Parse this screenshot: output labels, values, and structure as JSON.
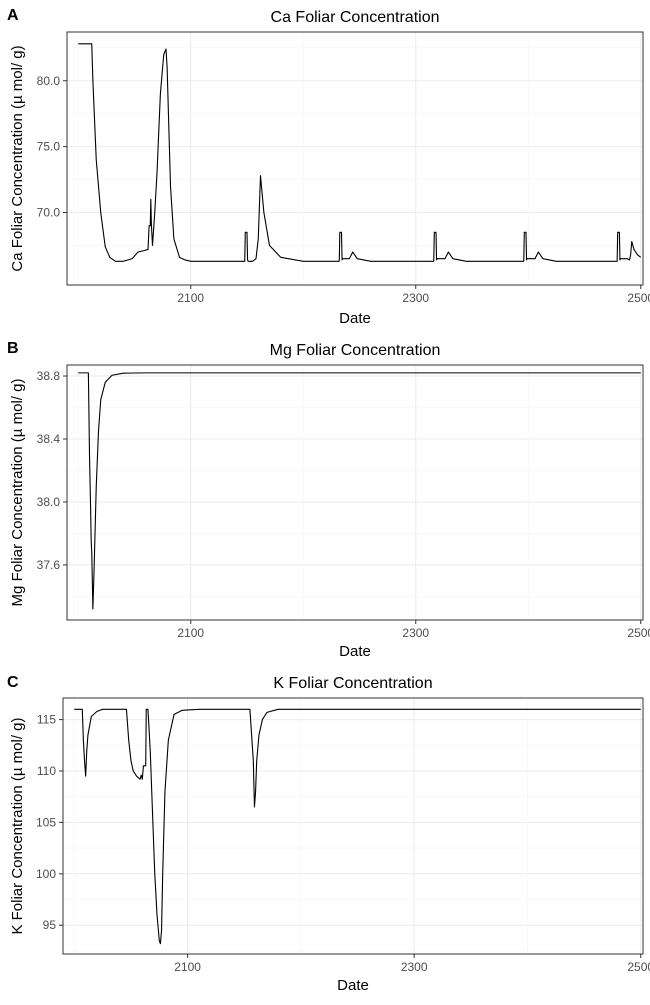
{
  "chart_data": [
    {
      "panel": "A",
      "type": "line",
      "title": "Ca Foliar Concentration",
      "xlabel": "Date",
      "ylabel": "Ca Foliar Concentration (µ mol/ g)",
      "xlim": [
        1990,
        2502
      ],
      "ylim": [
        64.5,
        83.7
      ],
      "x_ticks": [
        2100,
        2300,
        2500
      ],
      "x_tick_labels": [
        "2100",
        "2300",
        "2500"
      ],
      "y_ticks": [
        70,
        75,
        80
      ],
      "y_tick_labels": [
        "70.0",
        "75.0",
        "80.0"
      ],
      "grid": true,
      "series": [
        {
          "x": [
            2000,
            2012,
            2013,
            2016,
            2020,
            2024,
            2028,
            2033,
            2040,
            2048,
            2053,
            2058,
            2062,
            2063,
            2064,
            2064.5,
            2065,
            2066,
            2068,
            2070,
            2073,
            2076,
            2078,
            2079,
            2080,
            2082,
            2085,
            2090,
            2095,
            2100,
            2110,
            2120,
            2146,
            2148,
            2148.5,
            2150,
            2150.5,
            2151,
            2155,
            2158,
            2160,
            2162,
            2165,
            2170,
            2180,
            2200,
            2231,
            2232,
            2232.5,
            2234,
            2234.5,
            2235,
            2241,
            2244,
            2248,
            2260,
            2300,
            2315,
            2316,
            2316.5,
            2318,
            2318.5,
            2319,
            2326,
            2329,
            2333,
            2345,
            2380,
            2395,
            2396,
            2396.5,
            2398,
            2398.5,
            2399,
            2406,
            2409,
            2413,
            2425,
            2460,
            2478,
            2479,
            2479.5,
            2481,
            2481.5,
            2482,
            2488,
            2490,
            2491,
            2492,
            2494,
            2497,
            2500
          ],
          "y": [
            82.8,
            82.8,
            80,
            74,
            70,
            67.4,
            66.6,
            66.3,
            66.3,
            66.5,
            67,
            67.1,
            67.2,
            69,
            69,
            71,
            69.1,
            67.5,
            70,
            73,
            79,
            82,
            82.4,
            81,
            78,
            72,
            68,
            66.6,
            66.4,
            66.3,
            66.3,
            66.3,
            66.3,
            66.3,
            68.5,
            68.5,
            66.4,
            66.3,
            66.3,
            66.5,
            68,
            72.8,
            70,
            67.5,
            66.6,
            66.3,
            66.3,
            66.3,
            68.5,
            68.5,
            66.4,
            66.5,
            66.5,
            67,
            66.5,
            66.3,
            66.3,
            66.3,
            66.3,
            68.5,
            68.5,
            66.4,
            66.5,
            66.5,
            67,
            66.5,
            66.3,
            66.3,
            66.3,
            66.3,
            68.5,
            68.5,
            66.4,
            66.5,
            66.5,
            67,
            66.5,
            66.3,
            66.3,
            66.3,
            66.3,
            68.5,
            68.5,
            66.4,
            66.5,
            66.5,
            66.4,
            66.8,
            67.8,
            67.2,
            66.8,
            66.6
          ]
        }
      ]
    },
    {
      "panel": "B",
      "type": "line",
      "title": "Mg Foliar Concentration",
      "xlabel": "Date",
      "ylabel": "Mg Foliar Concentration (µ mol/ g)",
      "xlim": [
        1990,
        2502
      ],
      "ylim": [
        37.25,
        38.87
      ],
      "x_ticks": [
        2100,
        2300,
        2500
      ],
      "x_tick_labels": [
        "2100",
        "2300",
        "2500"
      ],
      "y_ticks": [
        37.6,
        38.0,
        38.4,
        38.8
      ],
      "y_tick_labels": [
        "37.6",
        "38.0",
        "38.4",
        "38.8"
      ],
      "grid": true,
      "series": [
        {
          "x": [
            2000,
            2009,
            2010,
            2011,
            2011.5,
            2012,
            2013,
            2014,
            2016,
            2018,
            2020,
            2024,
            2030,
            2040,
            2060,
            2100,
            2500
          ],
          "y": [
            38.82,
            38.82,
            38.3,
            37.95,
            37.75,
            37.68,
            37.32,
            37.55,
            38.1,
            38.45,
            38.65,
            38.76,
            38.805,
            38.818,
            38.82,
            38.82,
            38.82
          ]
        }
      ]
    },
    {
      "panel": "C",
      "type": "line",
      "title": "K Foliar Concentration",
      "xlabel": "Date",
      "ylabel": "K Foliar Concentration (µ mol/ g)",
      "xlim": [
        1990,
        2502
      ],
      "ylim": [
        92.2,
        117.1
      ],
      "x_ticks": [
        2100,
        2300,
        2500
      ],
      "x_tick_labels": [
        "2100",
        "2300",
        "2500"
      ],
      "y_ticks": [
        95,
        100,
        105,
        110,
        115
      ],
      "y_tick_labels": [
        "95",
        "100",
        "105",
        "110",
        "115"
      ],
      "grid": true,
      "series": [
        {
          "x": [
            2000,
            2007,
            2008,
            2009,
            2010,
            2011,
            2012,
            2015,
            2020,
            2025,
            2040,
            2046,
            2048,
            2050,
            2052,
            2055,
            2058,
            2059,
            2060,
            2061,
            2063,
            2063.5,
            2065,
            2067,
            2069,
            2071,
            2073,
            2075,
            2076,
            2077,
            2078,
            2080,
            2083,
            2088,
            2095,
            2110,
            2155,
            2158,
            2159,
            2160,
            2161,
            2163,
            2166,
            2170,
            2180,
            2500
          ],
          "y": [
            116,
            116,
            113,
            111,
            109.5,
            112,
            113.5,
            115.3,
            115.8,
            116,
            116,
            116,
            113,
            111,
            110,
            109.5,
            109.2,
            109.6,
            109.2,
            110.5,
            110.5,
            116,
            116,
            112,
            106,
            100,
            96,
            93.5,
            93.2,
            94.5,
            100,
            108,
            113,
            115.5,
            115.9,
            116,
            116,
            111,
            106.5,
            108,
            111,
            113.5,
            115,
            115.7,
            116,
            116
          ]
        }
      ]
    }
  ]
}
